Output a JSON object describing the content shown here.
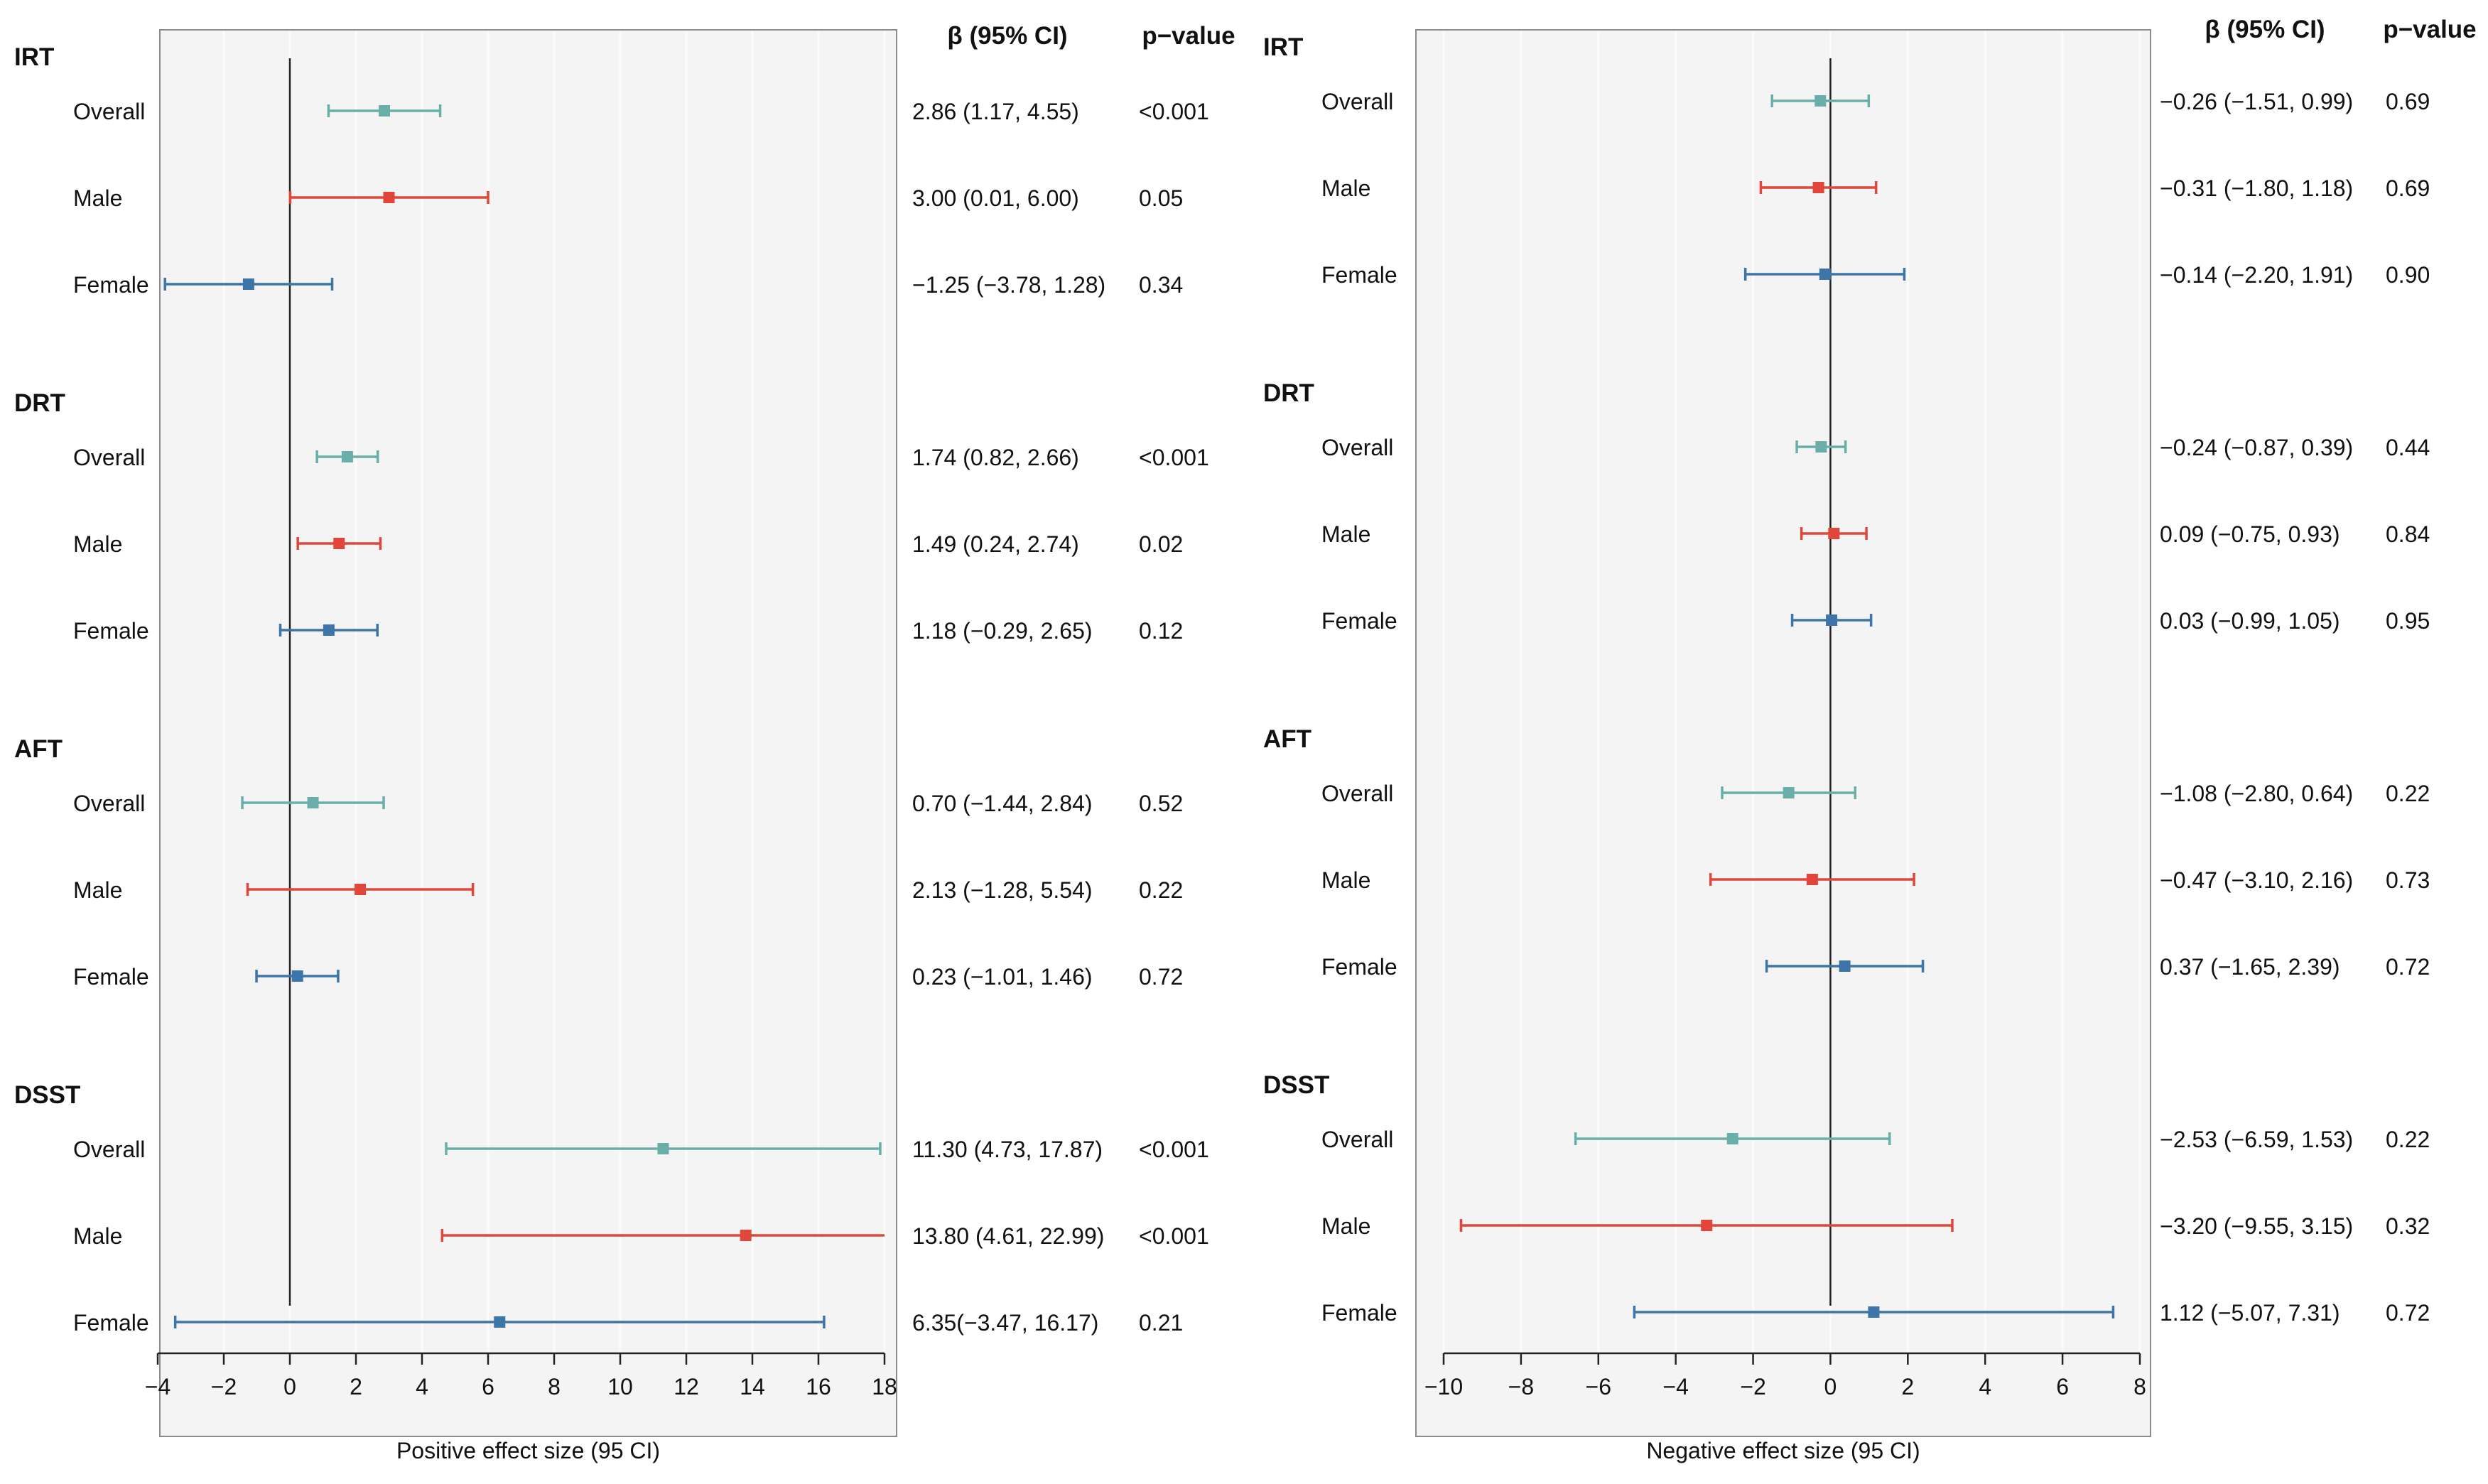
{
  "colors": {
    "overall": "#6aaeaa",
    "male": "#e0463a",
    "female": "#3d74aa",
    "panel_bg": "#f4f4f4",
    "grid": "#fbfbfb",
    "axis": "#222222",
    "text": "#111111"
  },
  "chart_data": [
    {
      "type": "forest",
      "id": "positive",
      "xlabel": "Positive effect size (95 CI)",
      "xlim": [
        -4.5,
        18
      ],
      "ticks": [
        -4,
        -2,
        0,
        2,
        4,
        6,
        8,
        10,
        12,
        14,
        16,
        18
      ],
      "tick_labels": [
        "−4",
        "−2",
        "0",
        "2",
        "4",
        "6",
        "8",
        "10",
        "12",
        "14",
        "16",
        "18"
      ],
      "reference_line": 0,
      "column_headers": {
        "beta": "β (95% CI)",
        "p": "p−value"
      },
      "groups": [
        {
          "name": "IRT",
          "rows": [
            {
              "label": "Overall",
              "series": "overall",
              "estimate": 2.86,
              "lower": 1.17,
              "upper": 4.55,
              "ci_text": "2.86 (1.17, 4.55)",
              "p_text": "<0.001"
            },
            {
              "label": "Male",
              "series": "male",
              "estimate": 3.0,
              "lower": 0.01,
              "upper": 6.0,
              "ci_text": "3.00 (0.01, 6.00)",
              "p_text": "0.05"
            },
            {
              "label": "Female",
              "series": "female",
              "estimate": -1.25,
              "lower": -3.78,
              "upper": 1.28,
              "ci_text": "−1.25 (−3.78, 1.28)",
              "p_text": "0.34"
            }
          ]
        },
        {
          "name": "DRT",
          "rows": [
            {
              "label": "Overall",
              "series": "overall",
              "estimate": 1.74,
              "lower": 0.82,
              "upper": 2.66,
              "ci_text": "1.74 (0.82, 2.66)",
              "p_text": "<0.001"
            },
            {
              "label": "Male",
              "series": "male",
              "estimate": 1.49,
              "lower": 0.24,
              "upper": 2.74,
              "ci_text": "1.49 (0.24, 2.74)",
              "p_text": "0.02"
            },
            {
              "label": "Female",
              "series": "female",
              "estimate": 1.18,
              "lower": -0.29,
              "upper": 2.65,
              "ci_text": "1.18 (−0.29, 2.65)",
              "p_text": "0.12"
            }
          ]
        },
        {
          "name": "AFT",
          "rows": [
            {
              "label": "Overall",
              "series": "overall",
              "estimate": 0.7,
              "lower": -1.44,
              "upper": 2.84,
              "ci_text": "0.70 (−1.44, 2.84)",
              "p_text": "0.52"
            },
            {
              "label": "Male",
              "series": "male",
              "estimate": 2.13,
              "lower": -1.28,
              "upper": 5.54,
              "ci_text": "2.13 (−1.28, 5.54)",
              "p_text": "0.22"
            },
            {
              "label": "Female",
              "series": "female",
              "estimate": 0.23,
              "lower": -1.01,
              "upper": 1.46,
              "ci_text": "0.23 (−1.01, 1.46)",
              "p_text": "0.72"
            }
          ]
        },
        {
          "name": "DSST",
          "rows": [
            {
              "label": "Overall",
              "series": "overall",
              "estimate": 11.3,
              "lower": 4.73,
              "upper": 17.87,
              "ci_text": "11.30 (4.73, 17.87)",
              "p_text": "<0.001"
            },
            {
              "label": "Male",
              "series": "male",
              "estimate": 13.8,
              "lower": 4.61,
              "upper": 22.99,
              "ci_text": "13.80 (4.61, 22.99)",
              "p_text": "<0.001"
            },
            {
              "label": "Female",
              "series": "female",
              "estimate": 6.35,
              "lower": -3.47,
              "upper": 16.17,
              "ci_text": "6.35(−3.47, 16.17)",
              "p_text": "0.21"
            }
          ]
        }
      ]
    },
    {
      "type": "forest",
      "id": "negative",
      "xlabel": "Negative effect size (95 CI)",
      "xlim": [
        -10,
        8
      ],
      "ticks": [
        -10,
        -8,
        -6,
        -4,
        -2,
        0,
        2,
        4,
        6,
        8
      ],
      "tick_labels": [
        "−10",
        "−8",
        "−6",
        "−4",
        "−2",
        "0",
        "2",
        "4",
        "6",
        "8"
      ],
      "reference_line": 0,
      "column_headers": {
        "beta": "β (95% CI)",
        "p": "p−value"
      },
      "groups": [
        {
          "name": "IRT",
          "rows": [
            {
              "label": "Overall",
              "series": "overall",
              "estimate": -0.26,
              "lower": -1.51,
              "upper": 0.99,
              "ci_text": "−0.26 (−1.51, 0.99)",
              "p_text": "0.69"
            },
            {
              "label": "Male",
              "series": "male",
              "estimate": -0.31,
              "lower": -1.8,
              "upper": 1.18,
              "ci_text": "−0.31 (−1.80, 1.18)",
              "p_text": "0.69"
            },
            {
              "label": "Female",
              "series": "female",
              "estimate": -0.14,
              "lower": -2.2,
              "upper": 1.91,
              "ci_text": "−0.14 (−2.20, 1.91)",
              "p_text": "0.90"
            }
          ]
        },
        {
          "name": "DRT",
          "rows": [
            {
              "label": "Overall",
              "series": "overall",
              "estimate": -0.24,
              "lower": -0.87,
              "upper": 0.39,
              "ci_text": "−0.24 (−0.87, 0.39)",
              "p_text": "0.44"
            },
            {
              "label": "Male",
              "series": "male",
              "estimate": 0.09,
              "lower": -0.75,
              "upper": 0.93,
              "ci_text": "0.09 (−0.75, 0.93)",
              "p_text": "0.84"
            },
            {
              "label": "Female",
              "series": "female",
              "estimate": 0.03,
              "lower": -0.99,
              "upper": 1.05,
              "ci_text": "0.03 (−0.99, 1.05)",
              "p_text": "0.95"
            }
          ]
        },
        {
          "name": "AFT",
          "rows": [
            {
              "label": "Overall",
              "series": "overall",
              "estimate": -1.08,
              "lower": -2.8,
              "upper": 0.64,
              "ci_text": "−1.08 (−2.80, 0.64)",
              "p_text": "0.22"
            },
            {
              "label": "Male",
              "series": "male",
              "estimate": -0.47,
              "lower": -3.1,
              "upper": 2.16,
              "ci_text": "−0.47 (−3.10, 2.16)",
              "p_text": "0.73"
            },
            {
              "label": "Female",
              "series": "female",
              "estimate": 0.37,
              "lower": -1.65,
              "upper": 2.39,
              "ci_text": "0.37 (−1.65, 2.39)",
              "p_text": "0.72"
            }
          ]
        },
        {
          "name": "DSST",
          "rows": [
            {
              "label": "Overall",
              "series": "overall",
              "estimate": -2.53,
              "lower": -6.59,
              "upper": 1.53,
              "ci_text": "−2.53 (−6.59, 1.53)",
              "p_text": "0.22"
            },
            {
              "label": "Male",
              "series": "male",
              "estimate": -3.2,
              "lower": -9.55,
              "upper": 3.15,
              "ci_text": "−3.20 (−9.55, 3.15)",
              "p_text": "0.32"
            },
            {
              "label": "Female",
              "series": "female",
              "estimate": 1.12,
              "lower": -5.07,
              "upper": 7.31,
              "ci_text": "1.12 (−5.07, 7.31)",
              "p_text": "0.72"
            }
          ]
        }
      ]
    }
  ]
}
